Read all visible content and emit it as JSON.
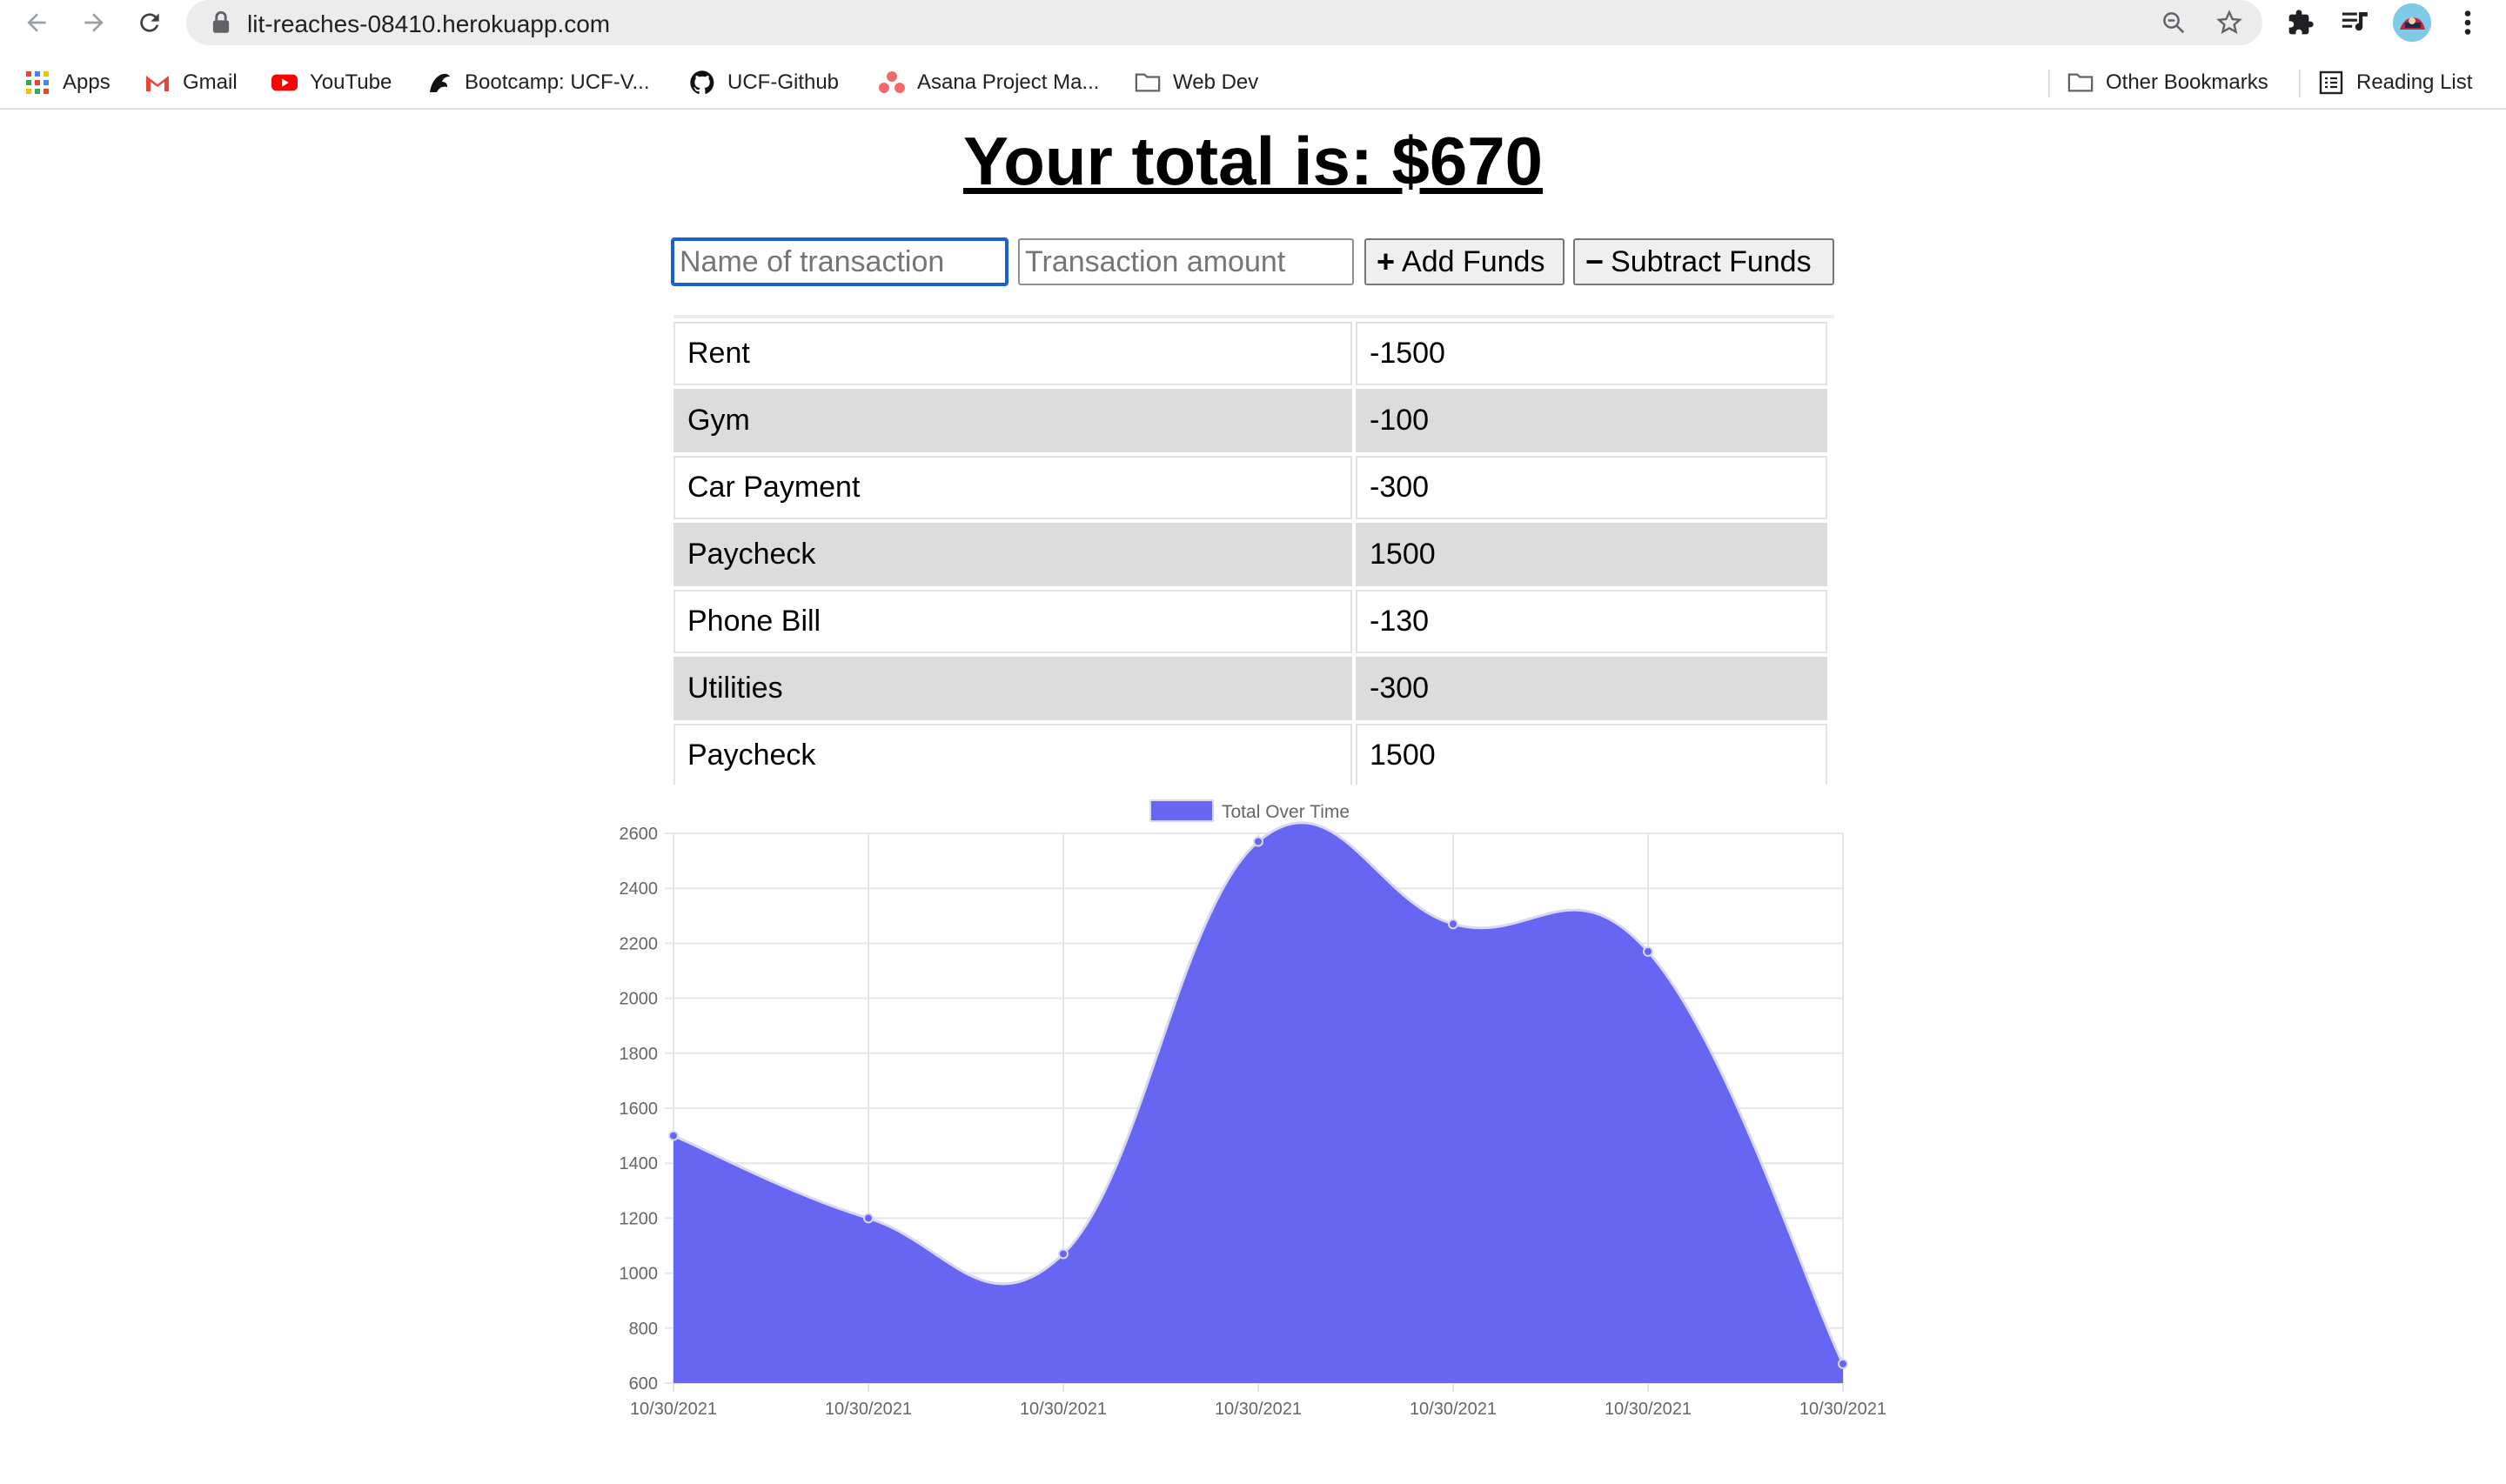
{
  "browser": {
    "url": "lit-reaches-08410.herokuapp.com",
    "bookmarks": [
      "Apps",
      "Gmail",
      "YouTube",
      "Bootcamp: UCF-V...",
      "UCF-Github",
      "Asana Project Ma...",
      "Web Dev"
    ],
    "other_bookmarks": "Other Bookmarks",
    "reading_list": "Reading List"
  },
  "page": {
    "total_text": "Your total is: $670",
    "name_placeholder": "Name of transaction",
    "amount_placeholder": "Transaction amount",
    "add_label": "Add Funds",
    "subtract_label": "Subtract Funds",
    "add_symbol": "+",
    "subtract_symbol": "−"
  },
  "transactions": [
    {
      "name": "Rent",
      "value": "-1500"
    },
    {
      "name": "Gym",
      "value": "-100"
    },
    {
      "name": "Car Payment",
      "value": "-300"
    },
    {
      "name": "Paycheck",
      "value": "1500"
    },
    {
      "name": "Phone Bill",
      "value": "-130"
    },
    {
      "name": "Utilities",
      "value": "-300"
    },
    {
      "name": "Paycheck",
      "value": "1500"
    }
  ],
  "chart_data": {
    "type": "area",
    "x": [
      "10/30/2021",
      "10/30/2021",
      "10/30/2021",
      "10/30/2021",
      "10/30/2021",
      "10/30/2021",
      "10/30/2021"
    ],
    "series": [
      {
        "name": "Total Over Time",
        "values": [
          1500,
          1200,
          1070,
          2570,
          2270,
          2170,
          670
        ],
        "color": "#6666f2"
      }
    ],
    "ylim": [
      600,
      2600
    ],
    "yticks": [
      600,
      800,
      1000,
      1200,
      1400,
      1600,
      1800,
      2000,
      2200,
      2400,
      2600
    ],
    "grid": true,
    "legend": "top"
  }
}
